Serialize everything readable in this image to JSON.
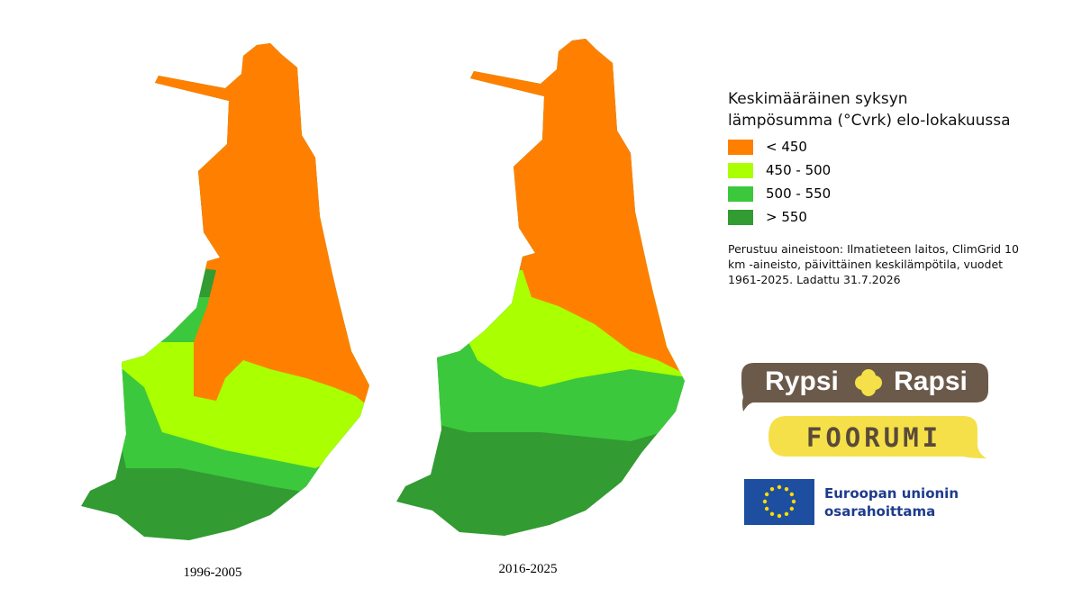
{
  "maps": [
    {
      "caption": "1996-2005"
    },
    {
      "caption": "2016-2025"
    }
  ],
  "legend": {
    "title_lines": [
      "Keskimääräinen syksyn",
      "lämpösumma (°Cvrk) elo-lokakuussa"
    ],
    "items": [
      {
        "label": "< 450",
        "color": "#ff8000"
      },
      {
        "label": "450 - 500",
        "color": "#aaff00"
      },
      {
        "label": "500 - 550",
        "color": "#3cc83c"
      },
      {
        "label": "> 550",
        "color": "#329b32"
      }
    ]
  },
  "source_lines": [
    "Perustuu aineistoon: Ilmatieteen laitos, ClimGrid 10",
    "km -aineisto, päivittäinen keskilämpötila, vuodet",
    "1961-2025. Ladattu 31.7.2026"
  ],
  "logos": {
    "brand_left": "Rypsi",
    "brand_right": "Rapsi",
    "forum": "FOORUMI",
    "eu_lines": [
      "Euroopan unionin",
      "osarahoittama"
    ]
  }
}
